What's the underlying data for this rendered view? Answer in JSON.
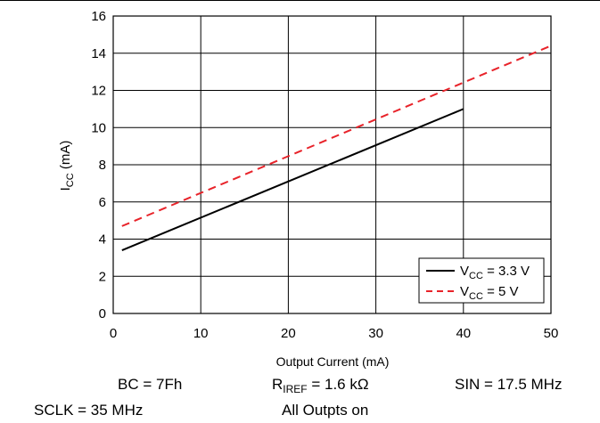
{
  "chart_data": {
    "type": "line",
    "xlabel": "Output Current (mA)",
    "ylabel": {
      "main": "I",
      "sub": "CC",
      "unit": " (mA)"
    },
    "xlim": [
      0,
      50
    ],
    "ylim": [
      0,
      16
    ],
    "xticks": [
      "0",
      "10",
      "20",
      "30",
      "40",
      "50"
    ],
    "yticks": [
      "0",
      "2",
      "4",
      "6",
      "8",
      "10",
      "12",
      "14",
      "16"
    ],
    "grid": true,
    "legend_position": "bottom-right",
    "series": [
      {
        "name": {
          "main": "V",
          "sub": "CC",
          "rest": " = 3.3 V"
        },
        "color": "#000000",
        "dash": "solid",
        "x": [
          1,
          40
        ],
        "y": [
          3.4,
          11.0
        ]
      },
      {
        "name": {
          "main": "V",
          "sub": "CC",
          "rest": " = 5 V"
        },
        "color": "#e8232a",
        "dash": "dashed",
        "x": [
          1,
          50
        ],
        "y": [
          4.7,
          14.4
        ]
      }
    ]
  },
  "conditions": {
    "bc": "BC = 7Fh",
    "riref": {
      "main": "R",
      "sub": "IREF",
      "rest": " = 1.6 kΩ"
    },
    "sin": "SIN = 17.5 MHz",
    "sclk": "SCLK = 35 MHz",
    "outputs": "All Outpts on"
  }
}
